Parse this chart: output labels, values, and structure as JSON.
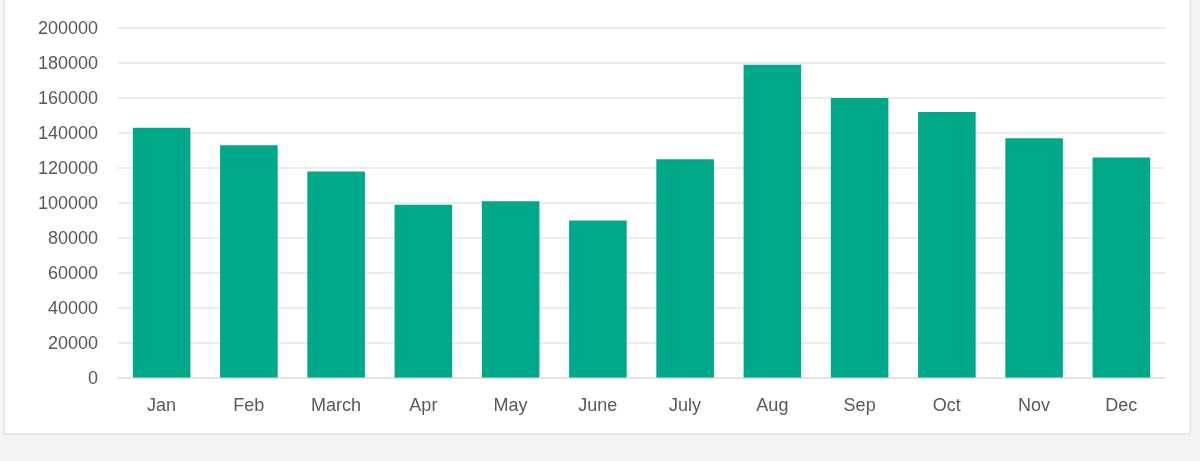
{
  "chart_data": {
    "type": "bar",
    "categories": [
      "Jan",
      "Feb",
      "March",
      "Apr",
      "May",
      "June",
      "July",
      "Aug",
      "Sep",
      "Oct",
      "Nov",
      "Dec"
    ],
    "values": [
      143000,
      133000,
      118000,
      99000,
      101000,
      90000,
      125000,
      179000,
      160000,
      152000,
      137000,
      126000
    ],
    "color": "#00a88a",
    "ylim": [
      0,
      200000
    ],
    "yticks": [
      0,
      20000,
      40000,
      60000,
      80000,
      100000,
      120000,
      140000,
      160000,
      180000,
      200000
    ],
    "grid": "y"
  }
}
